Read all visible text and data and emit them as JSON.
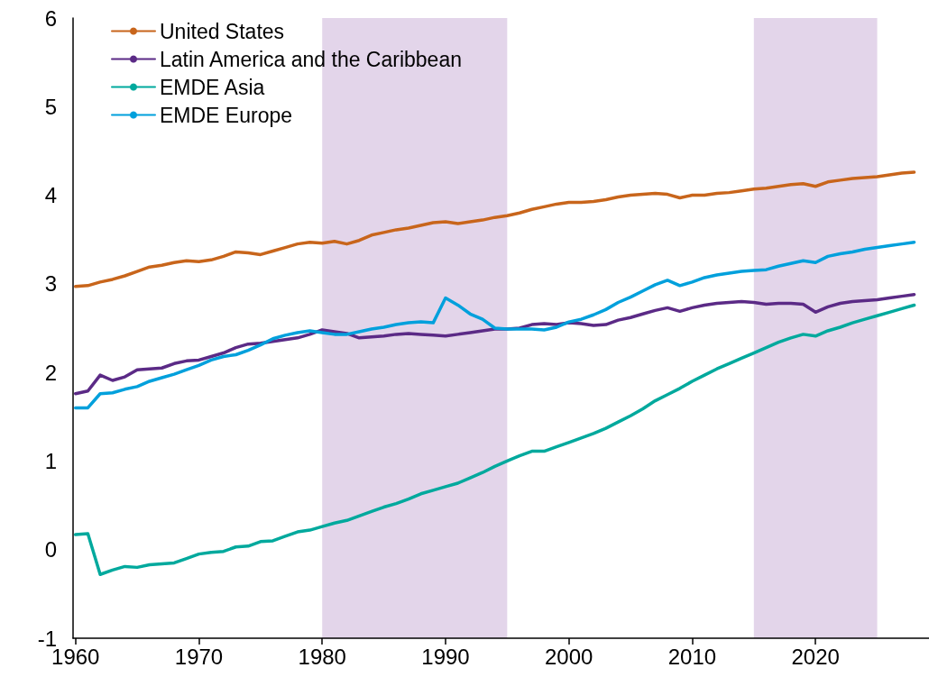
{
  "chart_data": {
    "type": "line",
    "x": [
      1960,
      1961,
      1962,
      1963,
      1964,
      1965,
      1966,
      1967,
      1968,
      1969,
      1970,
      1971,
      1972,
      1973,
      1974,
      1975,
      1976,
      1977,
      1978,
      1979,
      1980,
      1981,
      1982,
      1983,
      1984,
      1985,
      1986,
      1987,
      1988,
      1989,
      1990,
      1991,
      1992,
      1993,
      1994,
      1995,
      1996,
      1997,
      1998,
      1999,
      2000,
      2001,
      2002,
      2003,
      2004,
      2005,
      2006,
      2007,
      2008,
      2009,
      2010,
      2011,
      2012,
      2013,
      2014,
      2015,
      2016,
      2017,
      2018,
      2019,
      2020,
      2021,
      2022,
      2023,
      2024,
      2025,
      2026,
      2027,
      2028
    ],
    "series": [
      {
        "name": "United States",
        "color": "#c8651b",
        "values": [
          2.97,
          2.98,
          3.02,
          3.05,
          3.09,
          3.14,
          3.19,
          3.21,
          3.24,
          3.26,
          3.25,
          3.27,
          3.31,
          3.36,
          3.35,
          3.33,
          3.37,
          3.41,
          3.45,
          3.47,
          3.46,
          3.48,
          3.45,
          3.49,
          3.55,
          3.58,
          3.61,
          3.63,
          3.66,
          3.69,
          3.7,
          3.68,
          3.7,
          3.72,
          3.75,
          3.77,
          3.8,
          3.84,
          3.87,
          3.9,
          3.92,
          3.92,
          3.93,
          3.95,
          3.98,
          4.0,
          4.01,
          4.02,
          4.01,
          3.97,
          4.0,
          4.0,
          4.02,
          4.03,
          4.05,
          4.07,
          4.08,
          4.1,
          4.12,
          4.13,
          4.1,
          4.15,
          4.17,
          4.19,
          4.2,
          4.21,
          4.23,
          4.25,
          4.26
        ]
      },
      {
        "name": "Latin America and the Caribbean",
        "color": "#5b2a86",
        "values": [
          1.76,
          1.79,
          1.97,
          1.91,
          1.95,
          2.03,
          2.04,
          2.05,
          2.1,
          2.13,
          2.14,
          2.18,
          2.22,
          2.28,
          2.32,
          2.33,
          2.35,
          2.37,
          2.39,
          2.43,
          2.48,
          2.46,
          2.44,
          2.39,
          2.4,
          2.41,
          2.43,
          2.44,
          2.43,
          2.42,
          2.41,
          2.43,
          2.45,
          2.47,
          2.49,
          2.49,
          2.5,
          2.54,
          2.55,
          2.54,
          2.56,
          2.55,
          2.53,
          2.54,
          2.59,
          2.62,
          2.66,
          2.7,
          2.73,
          2.69,
          2.73,
          2.76,
          2.78,
          2.79,
          2.8,
          2.79,
          2.77,
          2.78,
          2.78,
          2.77,
          2.68,
          2.74,
          2.78,
          2.8,
          2.81,
          2.82,
          2.84,
          2.86,
          2.88
        ]
      },
      {
        "name": "EMDE Asia",
        "color": "#00a99d",
        "values": [
          0.17,
          0.18,
          -0.28,
          -0.23,
          -0.19,
          -0.2,
          -0.17,
          -0.16,
          -0.15,
          -0.1,
          -0.05,
          -0.03,
          -0.02,
          0.03,
          0.04,
          0.09,
          0.1,
          0.15,
          0.2,
          0.22,
          0.26,
          0.3,
          0.33,
          0.38,
          0.43,
          0.48,
          0.52,
          0.57,
          0.63,
          0.67,
          0.71,
          0.75,
          0.81,
          0.87,
          0.94,
          1.0,
          1.06,
          1.11,
          1.11,
          1.16,
          1.21,
          1.26,
          1.31,
          1.37,
          1.44,
          1.51,
          1.59,
          1.68,
          1.75,
          1.82,
          1.9,
          1.97,
          2.04,
          2.1,
          2.16,
          2.22,
          2.28,
          2.34,
          2.39,
          2.43,
          2.41,
          2.47,
          2.51,
          2.56,
          2.6,
          2.64,
          2.68,
          2.72,
          2.76
        ]
      },
      {
        "name": "EMDE Europe",
        "color": "#00a0dc",
        "values": [
          1.6,
          1.6,
          1.76,
          1.77,
          1.81,
          1.84,
          1.9,
          1.94,
          1.98,
          2.03,
          2.08,
          2.14,
          2.18,
          2.2,
          2.25,
          2.31,
          2.38,
          2.42,
          2.45,
          2.47,
          2.45,
          2.43,
          2.43,
          2.46,
          2.49,
          2.51,
          2.54,
          2.56,
          2.57,
          2.56,
          2.84,
          2.76,
          2.66,
          2.6,
          2.5,
          2.49,
          2.49,
          2.49,
          2.48,
          2.51,
          2.57,
          2.6,
          2.65,
          2.71,
          2.79,
          2.85,
          2.92,
          2.99,
          3.04,
          2.98,
          3.02,
          3.07,
          3.1,
          3.12,
          3.14,
          3.15,
          3.16,
          3.2,
          3.23,
          3.26,
          3.24,
          3.31,
          3.34,
          3.36,
          3.39,
          3.41,
          3.43,
          3.45,
          3.47
        ]
      }
    ],
    "xlim": [
      1959.8,
      2029.2
    ],
    "xticks": [
      1960,
      1970,
      1980,
      1990,
      2000,
      2010,
      2020
    ],
    "ylim": [
      -1,
      6
    ],
    "yticks": [
      -1,
      0,
      1,
      2,
      3,
      4,
      5,
      6
    ],
    "bands": [
      {
        "axis": "x",
        "from": 1980,
        "to": 1995,
        "color": "#e3d5ea"
      },
      {
        "axis": "x",
        "from": 2015,
        "to": 2025,
        "color": "#e3d5ea"
      }
    ],
    "grid": false,
    "legend": "top left",
    "marker": "none",
    "line_style": "solid"
  }
}
